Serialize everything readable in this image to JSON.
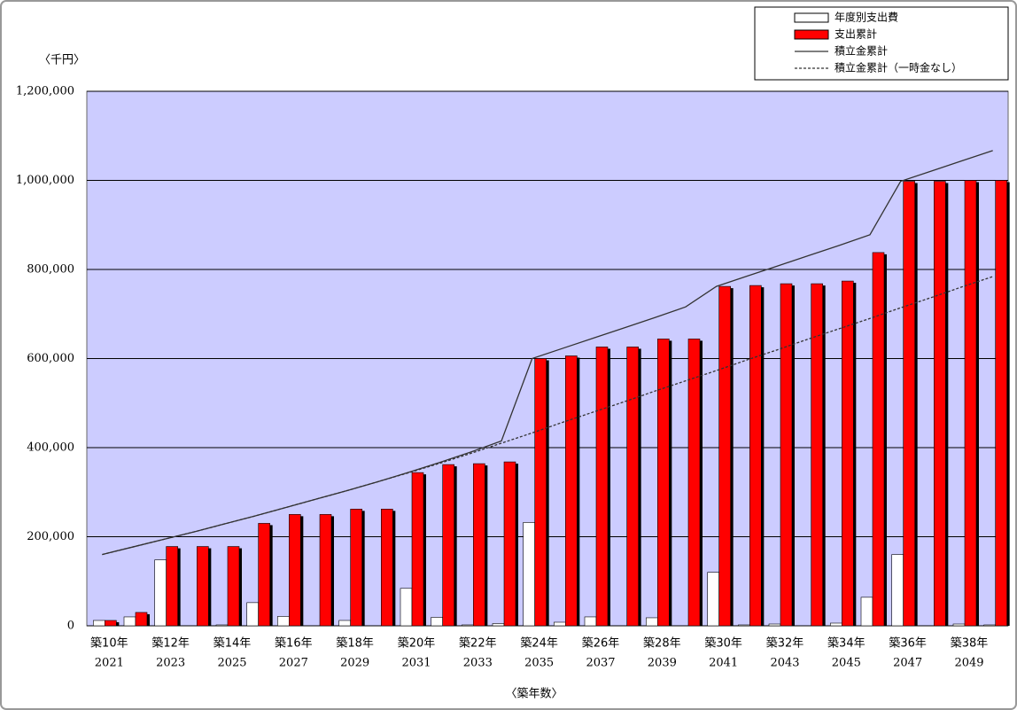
{
  "chart_data": {
    "type": "bar",
    "y_unit": "〈千円〉",
    "x_label": "〈築年数〉",
    "categories": [
      [
        "築10年",
        "2021"
      ],
      null,
      [
        "築12年",
        "2023"
      ],
      null,
      [
        "築14年",
        "2025"
      ],
      null,
      [
        "築16年",
        "2027"
      ],
      null,
      [
        "築18年",
        "2029"
      ],
      null,
      [
        "築20年",
        "2031"
      ],
      null,
      [
        "築22年",
        "2033"
      ],
      null,
      [
        "築24年",
        "2035"
      ],
      null,
      [
        "築26年",
        "2037"
      ],
      null,
      [
        "築28年",
        "2039"
      ],
      null,
      [
        "築30年",
        "2041"
      ],
      null,
      [
        "築32年",
        "2043"
      ],
      null,
      [
        "築34年",
        "2045"
      ],
      null,
      [
        "築36年",
        "2047"
      ],
      null,
      [
        "築38年",
        "2049"
      ],
      null
    ],
    "series": [
      {
        "name": "年度別支出費",
        "type": "bar",
        "color": "#ffffff",
        "values": [
          12000,
          20000,
          148000,
          0,
          2000,
          52000,
          21000,
          0,
          12000,
          0,
          84000,
          19000,
          2000,
          5000,
          232000,
          8000,
          20000,
          0,
          18000,
          0,
          120000,
          2000,
          4000,
          0,
          6000,
          64000,
          160000,
          0,
          4000,
          2000
        ]
      },
      {
        "name": "支出累計",
        "type": "bar",
        "color": "#ff0000",
        "values": [
          12000,
          30000,
          178000,
          178000,
          178000,
          230000,
          250000,
          250000,
          262000,
          262000,
          344000,
          362000,
          364000,
          368000,
          600000,
          606000,
          626000,
          626000,
          644000,
          644000,
          762000,
          764000,
          768000,
          768000,
          774000,
          838000,
          998000,
          998000,
          1000000,
          1000000
        ]
      },
      {
        "name": "積立金累計",
        "type": "line",
        "color": "#333333",
        "dashed": false,
        "values": [
          160000,
          177000,
          194000,
          211000,
          229000,
          247000,
          266000,
          285000,
          304000,
          324000,
          345000,
          367000,
          390000,
          415000,
          600000,
          623000,
          646000,
          669000,
          692000,
          716000,
          762000,
          785000,
          808000,
          831000,
          854000,
          878000,
          998000,
          1021000,
          1044000,
          1067000
        ]
      },
      {
        "name": "積立金累計（一時金なし）",
        "type": "line",
        "color": "#333333",
        "dashed": true,
        "values": [
          160000,
          177000,
          194000,
          211000,
          229000,
          247000,
          266000,
          285000,
          304000,
          324000,
          344000,
          365000,
          387000,
          410000,
          433000,
          457000,
          480000,
          503000,
          527000,
          550000,
          573000,
          597000,
          620000,
          644000,
          667000,
          690000,
          714000,
          737000,
          761000,
          784000
        ]
      }
    ],
    "ylim": [
      0,
      1200000
    ],
    "yticks": [
      0,
      {
        "value": 200000,
        "label": "200,000"
      },
      {
        "value": 400000,
        "label": "400,000"
      },
      {
        "value": 600000,
        "label": "600,000"
      },
      {
        "value": 800000,
        "label": "800,000"
      },
      {
        "value": 1000000,
        "label": "1,000,000"
      },
      {
        "value": 1200000,
        "label": "1,200,000"
      }
    ],
    "grid": true,
    "plot_color": "#ccccff",
    "legend": "top-right"
  }
}
